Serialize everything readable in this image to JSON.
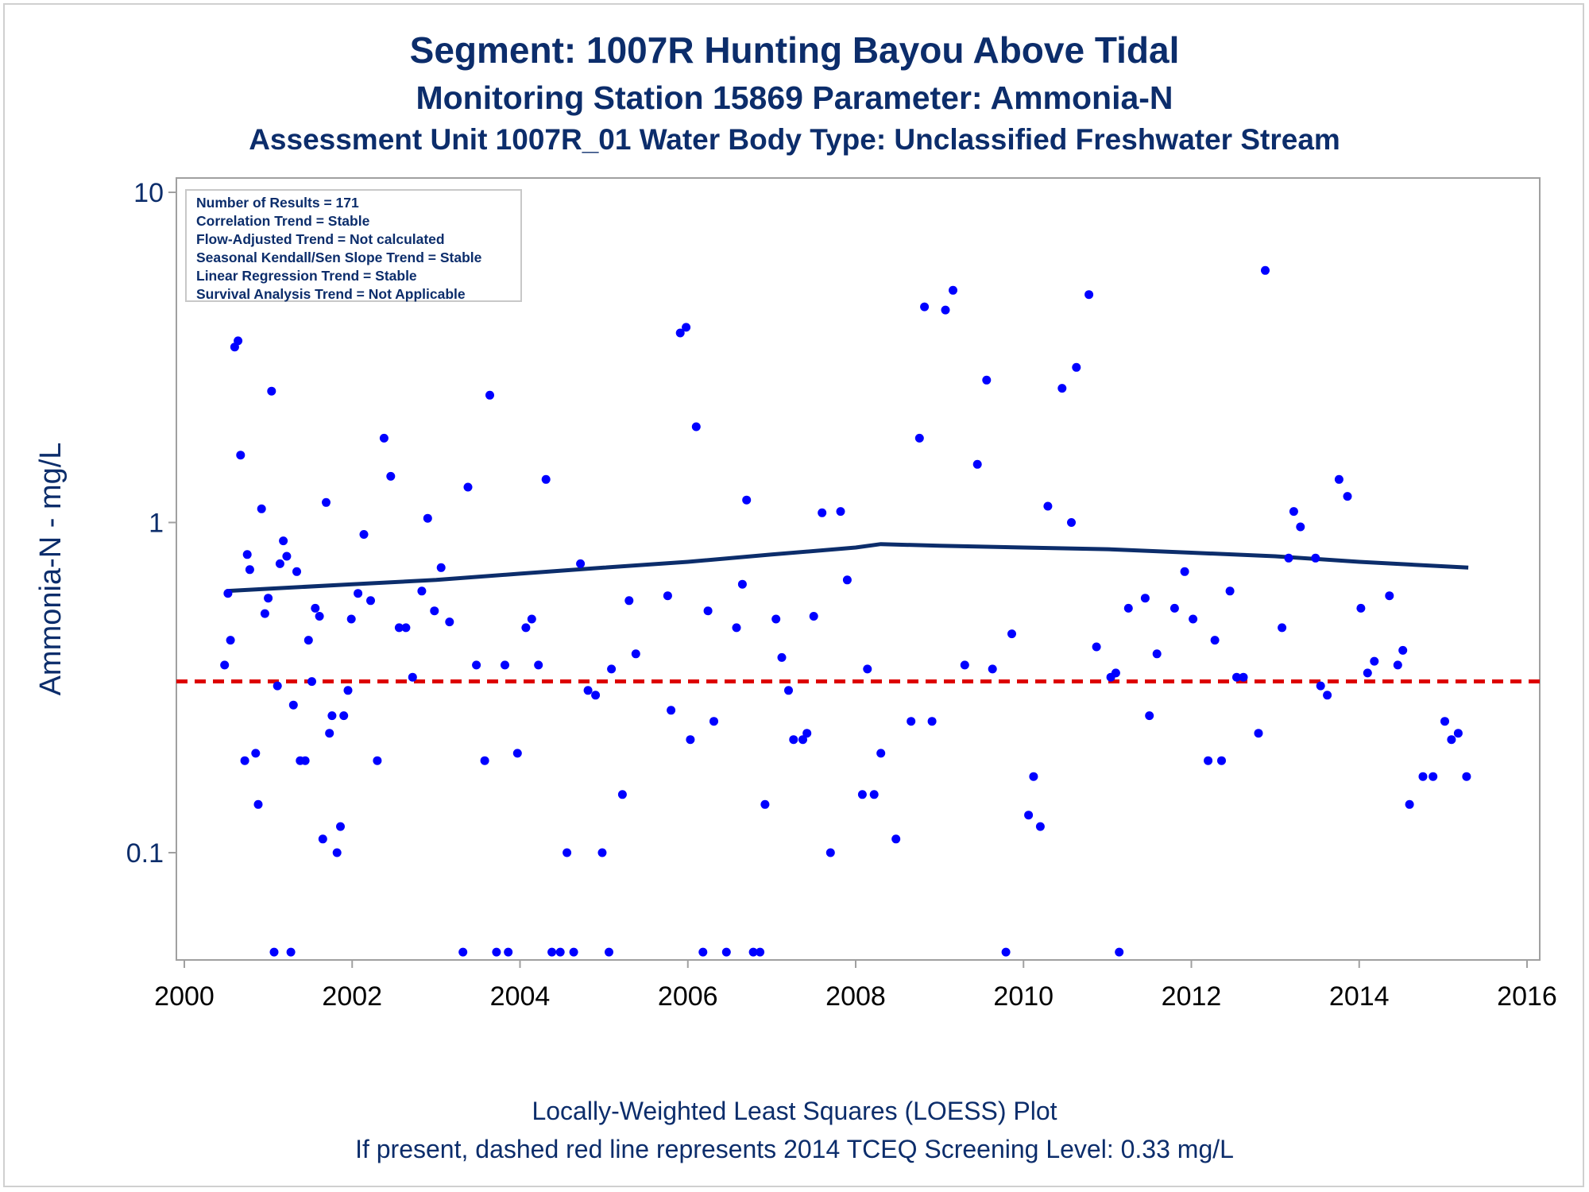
{
  "titles": {
    "line1": "Segment: 1007R  Hunting Bayou Above Tidal",
    "line2": "Monitoring Station 15869 Parameter: Ammonia-N",
    "line3": "Assessment Unit 1007R_01   Water Body Type: Unclassified Freshwater Stream"
  },
  "footnotes": {
    "line1": "Locally-Weighted Least Squares (LOESS) Plot",
    "line2": "If present, dashed red line represents 2014 TCEQ Screening Level: 0.33 mg/L"
  },
  "stats_box": [
    "Number of Results = 171",
    "Correlation Trend = Stable",
    "Flow-Adjusted Trend = Not calculated",
    "Seasonal Kendall/Sen Slope Trend = Stable",
    "Linear Regression Trend = Stable",
    "Survival Analysis Trend = Not Applicable"
  ],
  "colors": {
    "points": "#0000ff",
    "loess": "#0c2d6b",
    "screening": "#dd0000",
    "text": "#0c2d6b",
    "frame": "#a0a0a0"
  },
  "chart_data": {
    "type": "scatter",
    "xlabel": "",
    "ylabel": "Ammonia-N - mg/L",
    "x_ticks": [
      2000,
      2002,
      2004,
      2006,
      2008,
      2010,
      2012,
      2014,
      2016
    ],
    "y_ticks": [
      {
        "value": 0.1,
        "label": "0.1"
      },
      {
        "value": 1,
        "label": "1"
      },
      {
        "value": 10,
        "label": "10"
      }
    ],
    "xlim": [
      2000,
      2016
    ],
    "ylim": [
      0.05,
      10
    ],
    "yscale": "log",
    "grid": false,
    "legend": "none",
    "screening_level": 0.33,
    "series": [
      {
        "name": "",
        "points": [
          [
            2000.48,
            0.37
          ],
          [
            2000.52,
            0.61
          ],
          [
            2000.55,
            0.44
          ],
          [
            2000.6,
            3.4
          ],
          [
            2000.64,
            3.55
          ],
          [
            2000.67,
            1.6
          ],
          [
            2000.72,
            0.19
          ],
          [
            2000.75,
            0.8
          ],
          [
            2000.78,
            0.72
          ],
          [
            2000.85,
            0.2
          ],
          [
            2000.88,
            0.14
          ],
          [
            2000.92,
            1.1
          ],
          [
            2000.96,
            0.53
          ],
          [
            2001.0,
            0.59
          ],
          [
            2001.04,
            2.5
          ],
          [
            2001.07,
            0.05
          ],
          [
            2001.11,
            0.32
          ],
          [
            2001.14,
            0.75
          ],
          [
            2001.18,
            0.88
          ],
          [
            2001.22,
            0.79
          ],
          [
            2001.27,
            0.05
          ],
          [
            2001.3,
            0.28
          ],
          [
            2001.34,
            0.71
          ],
          [
            2001.38,
            0.19
          ],
          [
            2001.44,
            0.19
          ],
          [
            2001.48,
            0.44
          ],
          [
            2001.52,
            0.33
          ],
          [
            2001.56,
            0.55
          ],
          [
            2001.61,
            0.52
          ],
          [
            2001.65,
            0.11
          ],
          [
            2001.69,
            1.15
          ],
          [
            2001.73,
            0.23
          ],
          [
            2001.76,
            0.26
          ],
          [
            2001.82,
            0.1
          ],
          [
            2001.86,
            0.12
          ],
          [
            2001.9,
            0.26
          ],
          [
            2001.95,
            0.31
          ],
          [
            2001.99,
            0.51
          ],
          [
            2002.07,
            0.61
          ],
          [
            2002.14,
            0.92
          ],
          [
            2002.22,
            0.58
          ],
          [
            2002.3,
            0.19
          ],
          [
            2002.38,
            1.8
          ],
          [
            2002.46,
            1.38
          ],
          [
            2002.56,
            0.48
          ],
          [
            2002.64,
            0.48
          ],
          [
            2002.72,
            0.34
          ],
          [
            2002.83,
            0.62
          ],
          [
            2002.9,
            1.03
          ],
          [
            2002.98,
            0.54
          ],
          [
            2003.06,
            0.73
          ],
          [
            2003.16,
            0.5
          ],
          [
            2003.32,
            0.05
          ],
          [
            2003.38,
            1.28
          ],
          [
            2003.48,
            0.37
          ],
          [
            2003.58,
            0.19
          ],
          [
            2003.64,
            2.43
          ],
          [
            2003.72,
            0.05
          ],
          [
            2003.82,
            0.37
          ],
          [
            2003.86,
            0.05
          ],
          [
            2003.97,
            0.2
          ],
          [
            2004.07,
            0.48
          ],
          [
            2004.14,
            0.51
          ],
          [
            2004.22,
            0.37
          ],
          [
            2004.31,
            1.35
          ],
          [
            2004.38,
            0.05
          ],
          [
            2004.48,
            0.05
          ],
          [
            2004.56,
            0.1
          ],
          [
            2004.64,
            0.05
          ],
          [
            2004.72,
            0.75
          ],
          [
            2004.81,
            0.31
          ],
          [
            2004.9,
            0.3
          ],
          [
            2004.98,
            0.1
          ],
          [
            2005.06,
            0.05
          ],
          [
            2005.09,
            0.36
          ],
          [
            2005.22,
            0.15
          ],
          [
            2005.3,
            0.58
          ],
          [
            2005.38,
            0.4
          ],
          [
            2005.76,
            0.6
          ],
          [
            2005.8,
            0.27
          ],
          [
            2005.91,
            3.75
          ],
          [
            2005.98,
            3.9
          ],
          [
            2006.03,
            0.22
          ],
          [
            2006.1,
            1.95
          ],
          [
            2006.18,
            0.05
          ],
          [
            2006.24,
            0.54
          ],
          [
            2006.31,
            0.25
          ],
          [
            2006.46,
            0.05
          ],
          [
            2006.58,
            0.48
          ],
          [
            2006.65,
            0.65
          ],
          [
            2006.7,
            1.17
          ],
          [
            2006.78,
            0.05
          ],
          [
            2006.86,
            0.05
          ],
          [
            2006.92,
            0.14
          ],
          [
            2007.05,
            0.51
          ],
          [
            2007.12,
            0.39
          ],
          [
            2007.2,
            0.31
          ],
          [
            2007.26,
            0.22
          ],
          [
            2007.37,
            0.22
          ],
          [
            2007.42,
            0.23
          ],
          [
            2007.5,
            0.52
          ],
          [
            2007.6,
            1.07
          ],
          [
            2007.7,
            0.1
          ],
          [
            2007.82,
            1.08
          ],
          [
            2007.9,
            0.67
          ],
          [
            2008.08,
            0.15
          ],
          [
            2008.14,
            0.36
          ],
          [
            2008.22,
            0.15
          ],
          [
            2008.3,
            0.2
          ],
          [
            2008.48,
            0.11
          ],
          [
            2008.66,
            0.25
          ],
          [
            2008.76,
            1.8
          ],
          [
            2008.82,
            4.5
          ],
          [
            2008.91,
            0.25
          ],
          [
            2009.07,
            4.4
          ],
          [
            2009.16,
            5.05
          ],
          [
            2009.3,
            0.37
          ],
          [
            2009.45,
            1.5
          ],
          [
            2009.56,
            2.7
          ],
          [
            2009.63,
            0.36
          ],
          [
            2009.79,
            0.05
          ],
          [
            2009.86,
            0.46
          ],
          [
            2010.06,
            0.13
          ],
          [
            2010.12,
            0.17
          ],
          [
            2010.2,
            0.12
          ],
          [
            2010.29,
            1.12
          ],
          [
            2010.46,
            2.55
          ],
          [
            2010.57,
            1.0
          ],
          [
            2010.63,
            2.95
          ],
          [
            2010.78,
            4.9
          ],
          [
            2010.87,
            0.42
          ],
          [
            2011.04,
            0.34
          ],
          [
            2011.1,
            0.35
          ],
          [
            2011.14,
            0.05
          ],
          [
            2011.25,
            0.55
          ],
          [
            2011.45,
            0.59
          ],
          [
            2011.5,
            0.26
          ],
          [
            2011.59,
            0.4
          ],
          [
            2011.8,
            0.55
          ],
          [
            2011.92,
            0.71
          ],
          [
            2012.02,
            0.51
          ],
          [
            2012.2,
            0.19
          ],
          [
            2012.28,
            0.44
          ],
          [
            2012.36,
            0.19
          ],
          [
            2012.46,
            0.62
          ],
          [
            2012.54,
            0.34
          ],
          [
            2012.62,
            0.34
          ],
          [
            2012.8,
            0.23
          ],
          [
            2012.88,
            5.8
          ],
          [
            2013.08,
            0.48
          ],
          [
            2013.16,
            0.78
          ],
          [
            2013.22,
            1.08
          ],
          [
            2013.3,
            0.97
          ],
          [
            2013.48,
            0.78
          ],
          [
            2013.54,
            0.32
          ],
          [
            2013.62,
            0.3
          ],
          [
            2013.76,
            1.35
          ],
          [
            2013.86,
            1.2
          ],
          [
            2014.02,
            0.55
          ],
          [
            2014.1,
            0.35
          ],
          [
            2014.18,
            0.38
          ],
          [
            2014.36,
            0.6
          ],
          [
            2014.46,
            0.37
          ],
          [
            2014.52,
            0.41
          ],
          [
            2014.6,
            0.14
          ],
          [
            2014.76,
            0.17
          ],
          [
            2014.88,
            0.17
          ],
          [
            2015.02,
            0.25
          ],
          [
            2015.1,
            0.22
          ],
          [
            2015.18,
            0.23
          ],
          [
            2015.28,
            0.17
          ]
        ]
      }
    ],
    "loess": [
      [
        2000.5,
        0.62
      ],
      [
        2001.0,
        0.63
      ],
      [
        2002.0,
        0.65
      ],
      [
        2003.0,
        0.67
      ],
      [
        2004.0,
        0.7
      ],
      [
        2005.0,
        0.73
      ],
      [
        2006.0,
        0.76
      ],
      [
        2007.0,
        0.8
      ],
      [
        2008.0,
        0.84
      ],
      [
        2008.3,
        0.86
      ],
      [
        2009.0,
        0.85
      ],
      [
        2010.0,
        0.84
      ],
      [
        2011.0,
        0.83
      ],
      [
        2012.0,
        0.81
      ],
      [
        2013.0,
        0.79
      ],
      [
        2014.0,
        0.76
      ],
      [
        2015.3,
        0.73
      ]
    ]
  }
}
